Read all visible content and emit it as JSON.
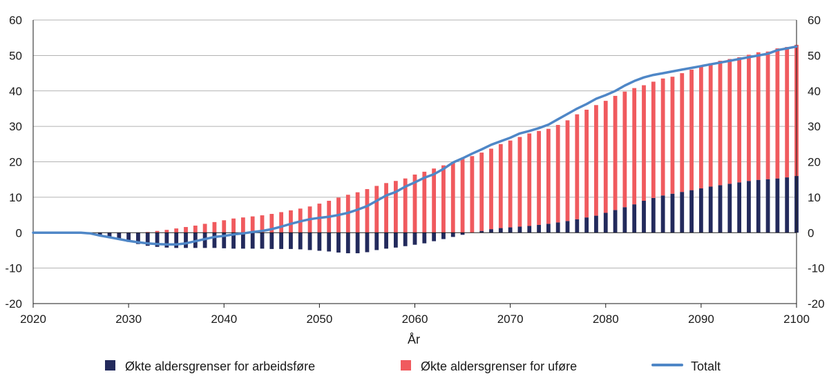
{
  "chart_data": {
    "type": "bar",
    "title": "",
    "xlabel": "År",
    "ylabel": "",
    "xlim": [
      2020,
      2100
    ],
    "ylim": [
      -20,
      60
    ],
    "y_ticks": [
      "-20",
      "-10",
      "0",
      "10",
      "20",
      "30",
      "40",
      "50",
      "60"
    ],
    "x_ticks": [
      "2020",
      "2030",
      "2040",
      "2050",
      "2060",
      "2070",
      "2080",
      "2090",
      "2100"
    ],
    "grid": true,
    "secondary_y_axis": true,
    "stacked": true,
    "legend_position": "bottom",
    "x": [
      2020,
      2021,
      2022,
      2023,
      2024,
      2025,
      2026,
      2027,
      2028,
      2029,
      2030,
      2031,
      2032,
      2033,
      2034,
      2035,
      2036,
      2037,
      2038,
      2039,
      2040,
      2041,
      2042,
      2043,
      2044,
      2045,
      2046,
      2047,
      2048,
      2049,
      2050,
      2051,
      2052,
      2053,
      2054,
      2055,
      2056,
      2057,
      2058,
      2059,
      2060,
      2061,
      2062,
      2063,
      2064,
      2065,
      2066,
      2067,
      2068,
      2069,
      2070,
      2071,
      2072,
      2073,
      2074,
      2075,
      2076,
      2077,
      2078,
      2079,
      2080,
      2081,
      2082,
      2083,
      2084,
      2085,
      2086,
      2087,
      2088,
      2089,
      2090,
      2091,
      2092,
      2093,
      2094,
      2095,
      2096,
      2097,
      2098,
      2099,
      2100
    ],
    "series": [
      {
        "name": "Økte aldersgrenser for arbeidsføre",
        "kind": "bar",
        "color": "#232a5c",
        "values": [
          0,
          0,
          0,
          0,
          0,
          0,
          -0.2,
          -0.8,
          -1.4,
          -2.0,
          -2.6,
          -3.2,
          -3.7,
          -4.0,
          -4.2,
          -4.3,
          -4.3,
          -4.3,
          -4.3,
          -4.3,
          -4.4,
          -4.5,
          -4.5,
          -4.5,
          -4.5,
          -4.6,
          -4.6,
          -4.6,
          -4.7,
          -4.9,
          -5.1,
          -5.3,
          -5.6,
          -5.8,
          -5.8,
          -5.5,
          -4.9,
          -4.5,
          -4.2,
          -3.8,
          -3.4,
          -3.0,
          -2.4,
          -1.8,
          -1.2,
          -0.6,
          0.0,
          0.5,
          1.0,
          1.3,
          1.5,
          1.7,
          1.9,
          2.2,
          2.5,
          2.9,
          3.3,
          3.8,
          4.3,
          4.8,
          5.6,
          6.4,
          7.2,
          8.0,
          9.0,
          9.8,
          10.5,
          11.0,
          11.5,
          12.0,
          12.5,
          13.0,
          13.4,
          13.8,
          14.2,
          14.6,
          14.9,
          15.1,
          15.3,
          15.6,
          16.0
        ]
      },
      {
        "name": "Økte aldersgrenser for uføre",
        "kind": "bar",
        "color": "#f05a5e",
        "values": [
          0,
          0,
          0,
          0,
          0,
          0,
          0,
          0,
          0,
          0,
          0,
          0,
          0.2,
          0.5,
          0.8,
          1.2,
          1.6,
          2.0,
          2.5,
          3.0,
          3.5,
          4.0,
          4.3,
          4.6,
          4.9,
          5.3,
          5.8,
          6.3,
          6.8,
          7.4,
          8.2,
          9.0,
          9.9,
          10.7,
          11.4,
          12.3,
          13.2,
          14.0,
          14.6,
          15.3,
          16.4,
          17.2,
          18.1,
          19.0,
          19.8,
          20.8,
          21.6,
          22.1,
          22.7,
          23.7,
          24.5,
          25.3,
          26.1,
          26.5,
          26.8,
          27.5,
          28.4,
          29.6,
          30.4,
          31.2,
          31.6,
          32.2,
          32.6,
          32.8,
          32.6,
          32.8,
          33.0,
          33.0,
          33.5,
          34.0,
          34.5,
          34.8,
          35.1,
          35.2,
          35.3,
          35.6,
          36.0,
          36.0,
          36.7,
          36.8,
          37.0
        ]
      },
      {
        "name": "Totalt",
        "kind": "line",
        "color": "#4f87c7",
        "values": [
          0,
          0,
          0,
          0,
          0,
          0,
          -0.2,
          -0.8,
          -1.3,
          -1.8,
          -2.3,
          -2.7,
          -3.0,
          -3.2,
          -3.3,
          -3.3,
          -3.0,
          -2.4,
          -1.8,
          -1.2,
          -0.9,
          -0.5,
          -0.2,
          0.2,
          0.5,
          1.0,
          1.7,
          2.5,
          3.2,
          3.8,
          4.2,
          4.5,
          5.0,
          5.6,
          6.5,
          7.5,
          9.0,
          10.5,
          11.5,
          13.0,
          14.2,
          15.5,
          16.5,
          18.0,
          19.8,
          21.0,
          22.3,
          23.5,
          24.8,
          25.8,
          26.8,
          28.0,
          28.7,
          29.5,
          30.5,
          32.0,
          33.5,
          35.0,
          36.3,
          37.8,
          38.8,
          40.0,
          41.5,
          42.8,
          43.8,
          44.5,
          45.0,
          45.5,
          46.0,
          46.5,
          47.0,
          47.5,
          48.0,
          48.5,
          49.0,
          49.5,
          50.0,
          50.5,
          51.5,
          52.0,
          52.5
        ]
      }
    ]
  }
}
